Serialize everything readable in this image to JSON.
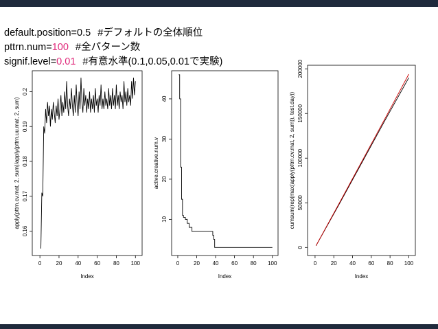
{
  "header": {
    "lines": [
      {
        "key": "default.position=",
        "value": "0.5",
        "comment": "#デフォルトの全体順位",
        "highlight": false
      },
      {
        "key": "pttrn.num=",
        "value": "100",
        "comment": "#全パターン数",
        "highlight": true
      },
      {
        "key": "signif.level=",
        "value": "0.01",
        "comment": "#有意水準(0.1,0.05,0.01で実験)",
        "highlight": true
      }
    ]
  },
  "chart_data": [
    {
      "type": "line",
      "xlabel": "Index",
      "ylabel": "apply(pttrn.cv.mat, 2, sum)/apply(pttrn.uu.mat, 2, sum)",
      "x": [
        1,
        2,
        3,
        4,
        5,
        6,
        7,
        8,
        9,
        10,
        11,
        12,
        13,
        14,
        15,
        16,
        17,
        18,
        19,
        20,
        21,
        22,
        23,
        24,
        25,
        26,
        27,
        28,
        29,
        30,
        31,
        32,
        33,
        34,
        35,
        36,
        37,
        38,
        39,
        40,
        41,
        42,
        43,
        44,
        45,
        46,
        47,
        48,
        49,
        50,
        51,
        52,
        53,
        54,
        55,
        56,
        57,
        58,
        59,
        60,
        61,
        62,
        63,
        64,
        65,
        66,
        67,
        68,
        69,
        70,
        71,
        72,
        73,
        74,
        75,
        76,
        77,
        78,
        79,
        80,
        81,
        82,
        83,
        84,
        85,
        86,
        87,
        88,
        89,
        90,
        91,
        92,
        93,
        94,
        95,
        96,
        97,
        98,
        99,
        100
      ],
      "series": [
        {
          "color": "#000000",
          "values": [
            0.155,
            0.171,
            0.17,
            0.19,
            0.188,
            0.195,
            0.191,
            0.197,
            0.193,
            0.196,
            0.19,
            0.195,
            0.192,
            0.197,
            0.194,
            0.191,
            0.196,
            0.193,
            0.198,
            0.192,
            0.195,
            0.199,
            0.193,
            0.197,
            0.194,
            0.2,
            0.195,
            0.203,
            0.196,
            0.193,
            0.198,
            0.195,
            0.201,
            0.196,
            0.193,
            0.199,
            0.194,
            0.202,
            0.196,
            0.193,
            0.2,
            0.195,
            0.204,
            0.197,
            0.194,
            0.201,
            0.196,
            0.199,
            0.194,
            0.198,
            0.195,
            0.2,
            0.194,
            0.198,
            0.195,
            0.199,
            0.194,
            0.201,
            0.196,
            0.198,
            0.194,
            0.199,
            0.196,
            0.202,
            0.195,
            0.198,
            0.195,
            0.2,
            0.196,
            0.198,
            0.195,
            0.201,
            0.196,
            0.199,
            0.195,
            0.201,
            0.196,
            0.199,
            0.195,
            0.202,
            0.196,
            0.199,
            0.195,
            0.2,
            0.197,
            0.199,
            0.195,
            0.203,
            0.197,
            0.2,
            0.196,
            0.201,
            0.197,
            0.199,
            0.196,
            0.203,
            0.198,
            0.204,
            0.199,
            0.203
          ]
        }
      ],
      "xlim": [
        -8,
        107
      ],
      "xticks": [
        0,
        20,
        40,
        60,
        80,
        100
      ],
      "ylim": [
        0.153,
        0.206
      ],
      "yticks": [
        0.16,
        0.17,
        0.18,
        0.19,
        0.2
      ]
    },
    {
      "type": "step",
      "xlabel": "Index",
      "ylabel": "active.creative.num.v",
      "x": [
        1,
        2,
        3,
        4,
        5,
        6,
        8,
        10,
        12,
        15,
        37,
        38,
        39,
        100
      ],
      "series": [
        {
          "color": "#000000",
          "values": [
            46,
            40,
            23,
            15,
            11,
            10.5,
            10,
            9,
            8,
            7,
            6,
            5,
            3,
            3
          ]
        }
      ],
      "xlim": [
        -6.5,
        106
      ],
      "xticks": [
        0,
        20,
        40,
        60,
        80,
        100
      ],
      "ylim": [
        1,
        47
      ],
      "yticks": [
        10,
        20,
        30,
        40
      ]
    },
    {
      "type": "line",
      "xlabel": "Index",
      "ylabel": "cumsum(rep(max(apply(pttrn.cv.mat, 2, sum)), test.day))",
      "x": [
        1,
        25,
        50,
        75,
        100
      ],
      "series": [
        {
          "color": "#000000",
          "values": [
            1900,
            47000,
            95000,
            143000,
            190000
          ]
        },
        {
          "color": "#cc0000",
          "values": [
            2000,
            48000,
            96500,
            145000,
            194000
          ]
        }
      ],
      "xlim": [
        -8,
        107
      ],
      "xticks": [
        0,
        20,
        40,
        60,
        80,
        100
      ],
      "ylim": [
        -9000,
        204000
      ],
      "yticks": [
        0,
        50000,
        100000,
        150000,
        200000
      ]
    }
  ]
}
